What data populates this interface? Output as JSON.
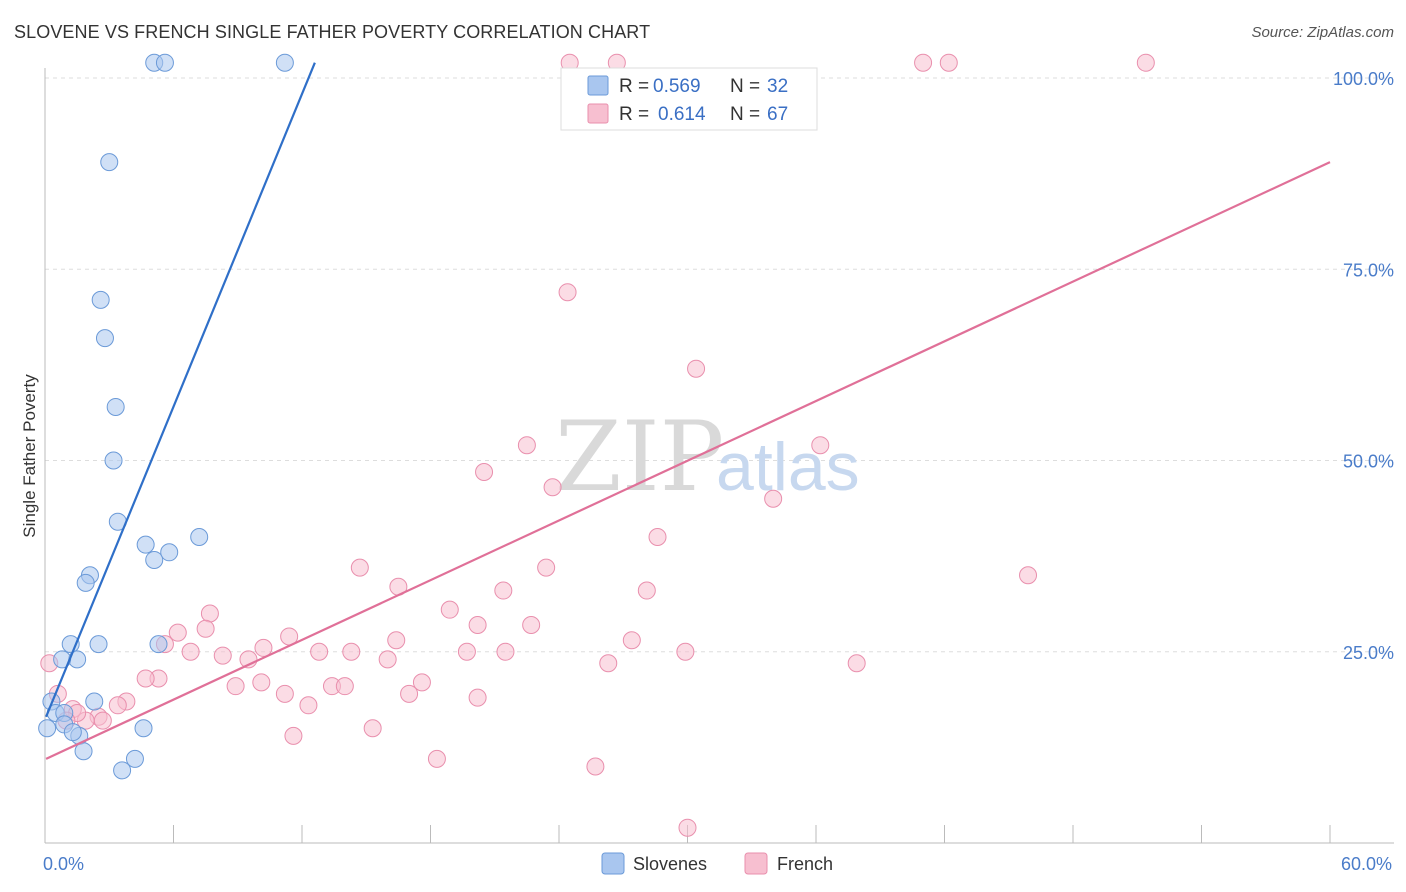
{
  "title": "SLOVENE VS FRENCH SINGLE FATHER POVERTY CORRELATION CHART",
  "source": "Source: ZipAtlas.com",
  "watermark": {
    "zip": "ZIP",
    "atlas": "atlas"
  },
  "colors": {
    "blue_fill": "#a9c6ef",
    "blue_stroke": "#6b9ad8",
    "blue_line": "#2f6fc8",
    "pink_fill": "#f7bfd0",
    "pink_stroke": "#e98fad",
    "pink_line": "#e07098",
    "grid": "#dddddd",
    "tick_text": "#4a7cc9"
  },
  "legend": {
    "rows": [
      {
        "r_label": "R =",
        "r_value": "0.569",
        "n_label": "N =",
        "n_value": "32"
      },
      {
        "r_label": "R =",
        "r_value": "0.614",
        "n_label": "N =",
        "n_value": "67"
      }
    ]
  },
  "bottom_legend": [
    "Slovenes",
    "French"
  ],
  "chart_data": {
    "type": "scatter",
    "title": "SLOVENE VS FRENCH SINGLE FATHER POVERTY CORRELATION CHART",
    "xlabel": "",
    "ylabel": "Single Father Poverty",
    "xlim": [
      0,
      60
    ],
    "ylim": [
      0,
      104
    ],
    "x_tick_labels": [
      "0.0%",
      "60.0%"
    ],
    "y_ticks": [
      25,
      50,
      75,
      100
    ],
    "y_tick_labels": [
      "25.0%",
      "50.0%",
      "75.0%",
      "100.0%"
    ],
    "grid": true,
    "series": [
      {
        "name": "Slovenes",
        "r": 0.569,
        "n": 32,
        "trend": {
          "x0": 0.05,
          "y0": 16.5,
          "x1": 12.6,
          "y1": 102
        },
        "points": [
          [
            5.1,
            102
          ],
          [
            5.6,
            102
          ],
          [
            11.2,
            102
          ],
          [
            3.0,
            89
          ],
          [
            2.6,
            71
          ],
          [
            2.8,
            66
          ],
          [
            3.3,
            57
          ],
          [
            3.2,
            50
          ],
          [
            3.4,
            42
          ],
          [
            4.7,
            39
          ],
          [
            7.2,
            40
          ],
          [
            5.1,
            37
          ],
          [
            5.8,
            38
          ],
          [
            2.1,
            35
          ],
          [
            1.9,
            34
          ],
          [
            1.2,
            26
          ],
          [
            2.5,
            26
          ],
          [
            5.3,
            26
          ],
          [
            1.5,
            24
          ],
          [
            0.8,
            24
          ],
          [
            0.3,
            18.5
          ],
          [
            2.3,
            18.5
          ],
          [
            0.5,
            17
          ],
          [
            0.9,
            17
          ],
          [
            0.9,
            15.5
          ],
          [
            1.6,
            14
          ],
          [
            1.3,
            14.5
          ],
          [
            4.6,
            15
          ],
          [
            1.8,
            12
          ],
          [
            4.2,
            11
          ],
          [
            3.6,
            9.5
          ],
          [
            0.1,
            15
          ]
        ]
      },
      {
        "name": "French",
        "r": 0.614,
        "n": 67,
        "trend": {
          "x0": 0.05,
          "y0": 11,
          "x1": 60,
          "y1": 89
        },
        "points": [
          [
            24.5,
            102
          ],
          [
            26.7,
            102
          ],
          [
            41.0,
            102
          ],
          [
            42.2,
            102
          ],
          [
            51.4,
            102
          ],
          [
            24.4,
            72
          ],
          [
            30.4,
            62
          ],
          [
            22.5,
            52
          ],
          [
            36.2,
            52
          ],
          [
            20.5,
            48.5
          ],
          [
            23.7,
            46.5
          ],
          [
            34.0,
            45
          ],
          [
            28.6,
            40
          ],
          [
            45.9,
            35
          ],
          [
            14.7,
            36
          ],
          [
            23.4,
            36
          ],
          [
            16.5,
            33.5
          ],
          [
            21.4,
            33
          ],
          [
            28.1,
            33
          ],
          [
            18.9,
            30.5
          ],
          [
            7.7,
            30
          ],
          [
            20.2,
            28.5
          ],
          [
            22.7,
            28.5
          ],
          [
            7.5,
            28
          ],
          [
            6.2,
            27.5
          ],
          [
            11.4,
            27
          ],
          [
            5.6,
            26
          ],
          [
            16.4,
            26.5
          ],
          [
            27.4,
            26.5
          ],
          [
            10.2,
            25.5
          ],
          [
            12.8,
            25
          ],
          [
            14.3,
            25
          ],
          [
            6.8,
            25
          ],
          [
            19.7,
            25
          ],
          [
            21.5,
            25
          ],
          [
            29.9,
            25
          ],
          [
            8.3,
            24.5
          ],
          [
            9.5,
            24
          ],
          [
            16.0,
            24
          ],
          [
            26.3,
            23.5
          ],
          [
            37.9,
            23.5
          ],
          [
            5.3,
            21.5
          ],
          [
            4.7,
            21.5
          ],
          [
            8.9,
            20.5
          ],
          [
            10.1,
            21
          ],
          [
            13.4,
            20.5
          ],
          [
            14.0,
            20.5
          ],
          [
            17.6,
            21
          ],
          [
            17.0,
            19.5
          ],
          [
            20.2,
            19
          ],
          [
            11.2,
            19.5
          ],
          [
            12.3,
            18
          ],
          [
            1.3,
            17.5
          ],
          [
            3.8,
            18.5
          ],
          [
            3.4,
            18
          ],
          [
            2.5,
            16.5
          ],
          [
            1.9,
            16
          ],
          [
            2.7,
            16
          ],
          [
            1.5,
            17
          ],
          [
            0.6,
            19.5
          ],
          [
            0.2,
            23.5
          ],
          [
            15.3,
            15
          ],
          [
            11.6,
            14
          ],
          [
            18.3,
            11
          ],
          [
            25.7,
            10
          ],
          [
            30.0,
            2
          ],
          [
            1.0,
            16
          ]
        ]
      }
    ]
  }
}
